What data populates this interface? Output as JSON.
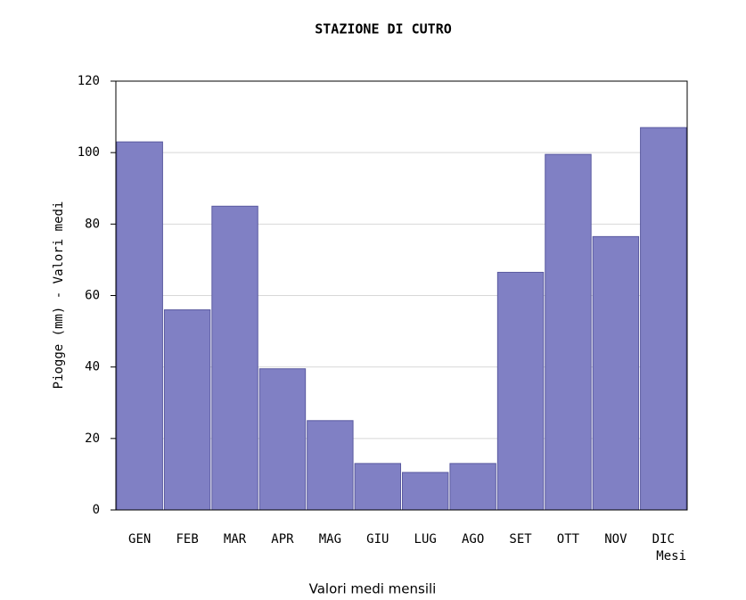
{
  "chart_data": {
    "type": "bar",
    "title": "STAZIONE DI CUTRO",
    "ylabel": "Piogge (mm) - Valori medi",
    "xlabel": "Mesi",
    "caption": "Valori medi mensili",
    "categories": [
      "GEN",
      "FEB",
      "MAR",
      "APR",
      "MAG",
      "GIU",
      "LUG",
      "AGO",
      "SET",
      "OTT",
      "NOV",
      "DIC"
    ],
    "values": [
      103,
      56,
      85,
      39.5,
      25,
      13,
      10.5,
      13,
      66.5,
      99.5,
      76.5,
      107
    ],
    "color": "#8080c4",
    "ylim": [
      0,
      120
    ],
    "yticks": [
      0,
      20,
      40,
      60,
      80,
      100,
      120
    ],
    "grid": true
  }
}
